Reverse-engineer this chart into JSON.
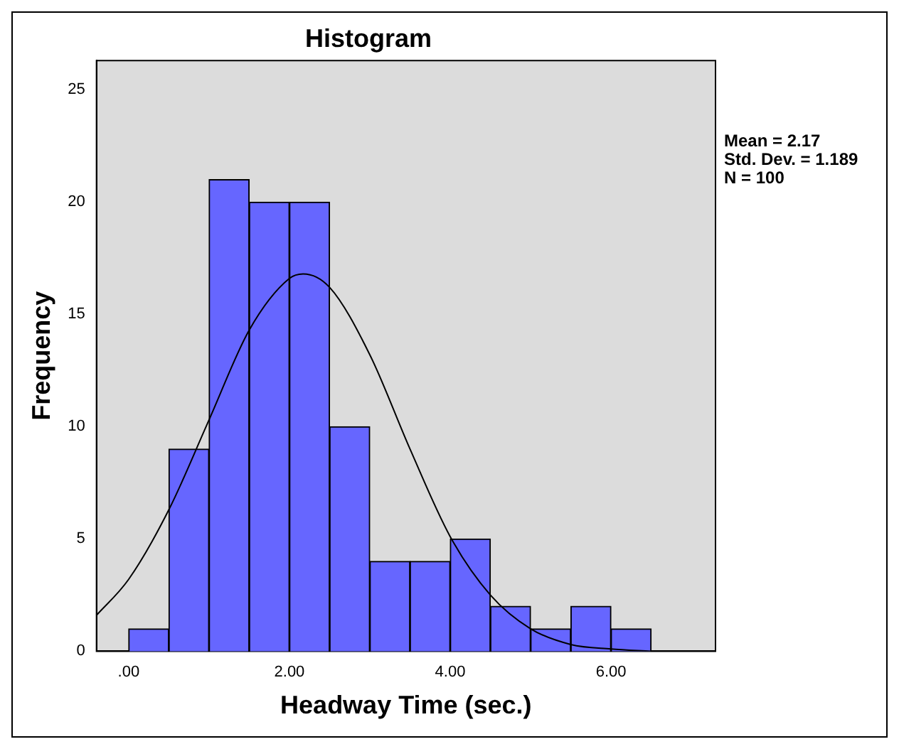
{
  "chart_data": {
    "type": "histogram",
    "title": "Histogram",
    "xlabel": "Headway Time (sec.)",
    "ylabel": "Frequency",
    "bins": [
      0,
      0.5,
      1,
      1.5,
      2,
      2.5,
      3,
      3.5,
      4,
      4.5,
      5,
      5.5,
      6,
      6.5
    ],
    "values": [
      1,
      9,
      21,
      20,
      20,
      10,
      4,
      4,
      5,
      2,
      1,
      2,
      1
    ],
    "color": "#6666ff",
    "series": [
      {
        "type": "line",
        "color": "#000000",
        "x": [
          -0.4,
          0,
          0.5,
          1,
          1.5,
          2,
          2.17,
          2.5,
          3,
          3.5,
          4,
          4.5,
          5,
          5.5,
          6,
          6.5
        ],
        "values": [
          1.6,
          3.2,
          6.3,
          10.3,
          14.3,
          16.6,
          16.8,
          16.2,
          13.2,
          9.0,
          5.1,
          2.5,
          1.0,
          0.3,
          0.1,
          0.0
        ]
      }
    ],
    "xlim": [
      -0.4,
      7.3
    ],
    "ylim": [
      0,
      26.3
    ],
    "xticks": [
      {
        "value": 0,
        "label": ".00"
      },
      {
        "value": 2,
        "label": "2.00"
      },
      {
        "value": 4,
        "label": "4.00"
      },
      {
        "value": 6,
        "label": "6.00"
      }
    ],
    "yticks": [
      0,
      5,
      10,
      15,
      20,
      25
    ],
    "annotations": [
      "Mean = 2.17",
      "Std. Dev. = 1.189",
      "N = 100"
    ]
  }
}
